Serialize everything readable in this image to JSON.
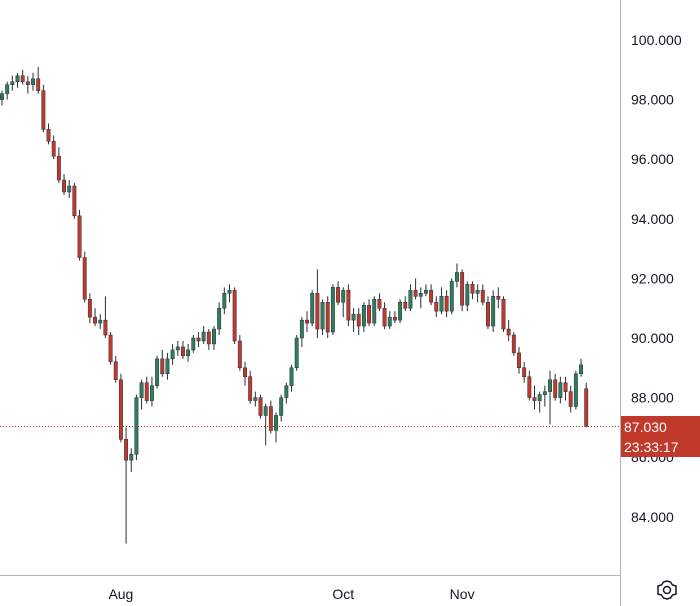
{
  "colors": {
    "up": "#2e7d5b",
    "down": "#c0392b",
    "axis": "#b2b5be",
    "text": "#131722",
    "price_bg": "#c0392b"
  },
  "chart_data": {
    "type": "candlestick",
    "title": "",
    "ylim": [
      82.2,
      101.5
    ],
    "y_ticks": [
      84,
      86,
      88,
      90,
      92,
      94,
      96,
      98,
      100
    ],
    "y_tick_labels": [
      "84.000",
      "86.000",
      "88.000",
      "90.000",
      "92.000",
      "94.000",
      "96.000",
      "98.000",
      "100.000"
    ],
    "x_labels": [
      {
        "label": "Aug",
        "index": 23
      },
      {
        "label": "Oct",
        "index": 66
      },
      {
        "label": "Nov",
        "index": 89
      }
    ],
    "last_price": 87.03,
    "last_price_label": "87.030",
    "countdown_label": "23:33:17",
    "candles": [
      [
        98.0,
        98.3,
        97.8,
        98.2
      ],
      [
        98.2,
        98.6,
        98.0,
        98.5
      ],
      [
        98.5,
        98.8,
        98.3,
        98.6
      ],
      [
        98.6,
        98.9,
        98.4,
        98.8
      ],
      [
        98.8,
        99.0,
        98.5,
        98.6
      ],
      [
        98.6,
        98.8,
        98.2,
        98.5
      ],
      [
        98.5,
        98.9,
        98.3,
        98.7
      ],
      [
        98.7,
        99.1,
        98.2,
        98.3
      ],
      [
        98.3,
        98.5,
        96.9,
        97.0
      ],
      [
        97.0,
        97.2,
        96.5,
        96.6
      ],
      [
        96.6,
        96.8,
        96.0,
        96.1
      ],
      [
        96.1,
        96.4,
        95.2,
        95.3
      ],
      [
        95.3,
        95.5,
        94.8,
        94.9
      ],
      [
        94.9,
        95.3,
        94.7,
        95.1
      ],
      [
        95.1,
        95.2,
        94.0,
        94.1
      ],
      [
        94.1,
        94.3,
        92.6,
        92.7
      ],
      [
        92.7,
        92.9,
        91.2,
        91.3
      ],
      [
        91.3,
        91.5,
        90.5,
        90.7
      ],
      [
        90.7,
        91.0,
        90.4,
        90.5
      ],
      [
        90.5,
        90.8,
        90.3,
        90.6
      ],
      [
        90.6,
        91.4,
        90.0,
        90.1
      ],
      [
        90.1,
        90.2,
        89.1,
        89.2
      ],
      [
        89.2,
        89.4,
        88.5,
        88.6
      ],
      [
        88.6,
        88.8,
        86.5,
        86.6
      ],
      [
        86.6,
        87.0,
        83.1,
        85.9
      ],
      [
        85.9,
        86.3,
        85.5,
        86.1
      ],
      [
        86.1,
        88.1,
        85.9,
        88.0
      ],
      [
        88.0,
        88.6,
        87.6,
        88.5
      ],
      [
        88.5,
        88.7,
        87.8,
        87.9
      ],
      [
        87.9,
        88.7,
        87.7,
        88.4
      ],
      [
        88.4,
        89.4,
        88.3,
        89.3
      ],
      [
        89.3,
        89.6,
        88.7,
        88.8
      ],
      [
        88.8,
        89.5,
        88.6,
        89.3
      ],
      [
        89.3,
        89.8,
        89.1,
        89.6
      ],
      [
        89.6,
        89.9,
        89.4,
        89.7
      ],
      [
        89.7,
        89.9,
        89.3,
        89.4
      ],
      [
        89.4,
        89.8,
        89.2,
        89.6
      ],
      [
        89.6,
        90.1,
        89.5,
        90.0
      ],
      [
        90.0,
        90.2,
        89.7,
        89.9
      ],
      [
        89.9,
        90.4,
        89.8,
        90.2
      ],
      [
        90.2,
        90.3,
        89.6,
        89.8
      ],
      [
        89.8,
        90.4,
        89.6,
        90.3
      ],
      [
        90.3,
        91.2,
        90.1,
        91.0
      ],
      [
        91.0,
        91.7,
        90.8,
        91.5
      ],
      [
        91.5,
        91.8,
        91.2,
        91.6
      ],
      [
        91.6,
        91.7,
        89.8,
        89.9
      ],
      [
        89.9,
        90.1,
        88.9,
        89.0
      ],
      [
        89.0,
        89.2,
        88.4,
        88.7
      ],
      [
        88.7,
        88.9,
        87.8,
        87.9
      ],
      [
        87.9,
        88.2,
        87.7,
        88.0
      ],
      [
        88.0,
        88.1,
        87.3,
        87.4
      ],
      [
        87.4,
        87.8,
        86.4,
        87.7
      ],
      [
        87.7,
        87.9,
        86.8,
        86.9
      ],
      [
        86.9,
        87.5,
        86.5,
        87.4
      ],
      [
        87.4,
        88.1,
        87.2,
        88.0
      ],
      [
        88.0,
        88.5,
        87.8,
        88.4
      ],
      [
        88.4,
        89.1,
        88.2,
        89.0
      ],
      [
        89.0,
        90.1,
        88.9,
        90.0
      ],
      [
        90.0,
        90.7,
        89.7,
        90.6
      ],
      [
        90.6,
        90.9,
        90.2,
        90.5
      ],
      [
        90.5,
        91.6,
        90.4,
        91.5
      ],
      [
        91.5,
        92.3,
        90.0,
        90.3
      ],
      [
        90.3,
        91.3,
        90.1,
        91.2
      ],
      [
        91.2,
        91.4,
        90.0,
        90.2
      ],
      [
        90.2,
        91.8,
        90.1,
        91.7
      ],
      [
        91.7,
        91.9,
        91.1,
        91.2
      ],
      [
        91.2,
        91.7,
        90.7,
        91.6
      ],
      [
        91.6,
        91.8,
        90.4,
        90.6
      ],
      [
        90.6,
        91.0,
        90.2,
        90.8
      ],
      [
        90.8,
        91.0,
        90.1,
        90.4
      ],
      [
        90.4,
        91.2,
        90.2,
        91.1
      ],
      [
        91.1,
        91.3,
        90.4,
        90.5
      ],
      [
        90.5,
        91.4,
        90.4,
        91.3
      ],
      [
        91.3,
        91.5,
        90.9,
        91.0
      ],
      [
        91.0,
        91.2,
        90.3,
        90.4
      ],
      [
        90.4,
        90.9,
        90.3,
        90.7
      ],
      [
        90.7,
        90.9,
        90.5,
        90.6
      ],
      [
        90.6,
        91.3,
        90.5,
        91.2
      ],
      [
        91.2,
        91.4,
        90.9,
        91.0
      ],
      [
        91.0,
        91.8,
        90.9,
        91.6
      ],
      [
        91.6,
        92.0,
        91.3,
        91.4
      ],
      [
        91.4,
        91.7,
        91.0,
        91.5
      ],
      [
        91.5,
        91.8,
        91.4,
        91.6
      ],
      [
        91.6,
        91.8,
        91.1,
        91.2
      ],
      [
        91.2,
        91.4,
        90.7,
        90.9
      ],
      [
        90.9,
        91.7,
        90.8,
        91.4
      ],
      [
        91.4,
        91.6,
        90.7,
        90.9
      ],
      [
        90.9,
        92.0,
        90.8,
        91.9
      ],
      [
        91.9,
        92.5,
        91.7,
        92.2
      ],
      [
        92.2,
        92.3,
        90.9,
        91.1
      ],
      [
        91.1,
        91.9,
        90.9,
        91.8
      ],
      [
        91.8,
        91.9,
        91.3,
        91.5
      ],
      [
        91.5,
        91.8,
        91.2,
        91.6
      ],
      [
        91.6,
        91.8,
        91.1,
        91.2
      ],
      [
        91.2,
        91.4,
        90.3,
        90.4
      ],
      [
        90.4,
        91.6,
        90.2,
        91.4
      ],
      [
        91.4,
        91.7,
        91.0,
        91.3
      ],
      [
        91.3,
        91.4,
        90.2,
        90.3
      ],
      [
        90.3,
        90.6,
        89.9,
        90.1
      ],
      [
        90.1,
        90.2,
        89.4,
        89.5
      ],
      [
        89.5,
        89.7,
        88.8,
        89.0
      ],
      [
        89.0,
        89.2,
        88.5,
        88.7
      ],
      [
        88.7,
        88.9,
        87.9,
        88.0
      ],
      [
        88.0,
        88.4,
        87.6,
        87.9
      ],
      [
        87.9,
        88.2,
        87.5,
        88.1
      ],
      [
        88.1,
        88.4,
        87.7,
        88.2
      ],
      [
        88.2,
        88.9,
        87.1,
        88.6
      ],
      [
        88.6,
        88.8,
        87.9,
        88.0
      ],
      [
        88.0,
        88.7,
        87.8,
        88.5
      ],
      [
        88.5,
        88.7,
        87.9,
        88.2
      ],
      [
        88.2,
        88.4,
        87.5,
        87.7
      ],
      [
        87.7,
        88.9,
        87.6,
        88.8
      ],
      [
        88.8,
        89.3,
        88.7,
        89.1
      ],
      [
        88.3,
        88.5,
        87.0,
        87.03
      ]
    ]
  }
}
